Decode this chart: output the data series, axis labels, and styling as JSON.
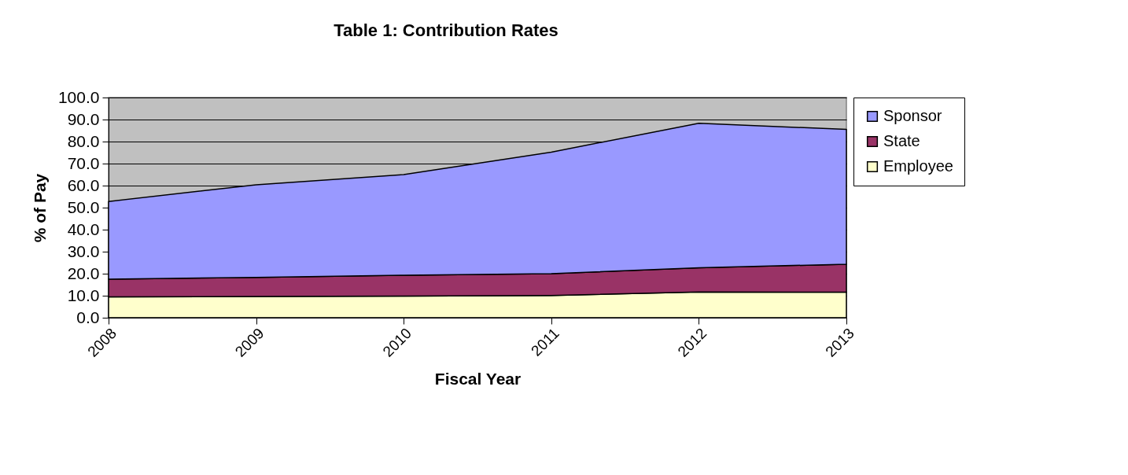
{
  "chart_data": {
    "type": "area",
    "title": "Table 1:  Contribution Rates",
    "xlabel": "Fiscal Year",
    "ylabel": "% of Pay",
    "categories": [
      "2008",
      "2009",
      "2010",
      "2011",
      "2012",
      "2013"
    ],
    "stacked": true,
    "series": [
      {
        "name": "Employee",
        "color": "#ffffcc",
        "values": [
          9.5,
          9.6,
          9.8,
          10.1,
          11.7,
          11.6
        ]
      },
      {
        "name": "State",
        "color": "#993366",
        "values": [
          8.0,
          8.7,
          9.5,
          9.9,
          11.0,
          12.7
        ]
      },
      {
        "name": "Sponsor",
        "color": "#9999ff",
        "values": [
          35.3,
          42.1,
          45.7,
          55.2,
          65.6,
          61.2
        ]
      }
    ],
    "ylim": [
      0,
      100
    ],
    "yticks": [
      {
        "value": 0,
        "label": "0.0"
      },
      {
        "value": 10,
        "label": "10.0"
      },
      {
        "value": 20,
        "label": "20.0"
      },
      {
        "value": 30,
        "label": "30.0"
      },
      {
        "value": 40,
        "label": "40.0"
      },
      {
        "value": 50,
        "label": "50.0"
      },
      {
        "value": 60,
        "label": "60.0"
      },
      {
        "value": 70,
        "label": "70.0"
      },
      {
        "value": 80,
        "label": "80.0"
      },
      {
        "value": 90,
        "label": "90.0"
      },
      {
        "value": 100,
        "label": "100.0"
      }
    ],
    "grid": "y",
    "legend": "right"
  }
}
